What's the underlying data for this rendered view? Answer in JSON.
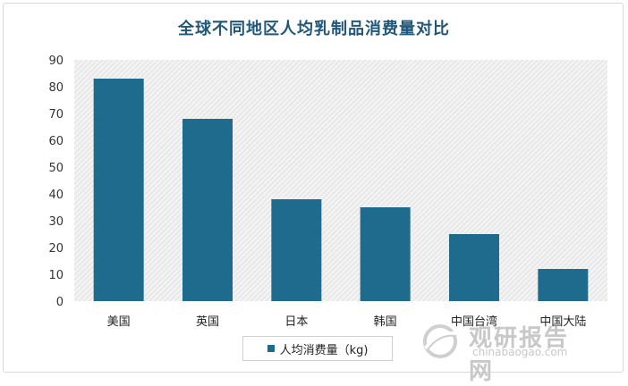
{
  "chart_data": {
    "type": "bar",
    "title": "全球不同地区人均乳制品消费量对比",
    "categories": [
      "美国",
      "英国",
      "日本",
      "韩国",
      "中国台湾",
      "中国大陆"
    ],
    "series": [
      {
        "name": "人均消费量（kg)",
        "values": [
          83,
          68,
          38,
          35,
          25,
          12
        ]
      }
    ],
    "ylim": [
      0,
      90
    ],
    "yticks": [
      0,
      10,
      20,
      30,
      40,
      50,
      60,
      70,
      80,
      90
    ],
    "bar_color": "#1f6b8e",
    "grid": false,
    "plot_background": "hatched-gray",
    "legend_position": "bottom"
  },
  "legend": {
    "label": "人均消费量（kg)"
  },
  "watermark": {
    "name": "观研报告网",
    "url": "chinabaogao.com"
  }
}
